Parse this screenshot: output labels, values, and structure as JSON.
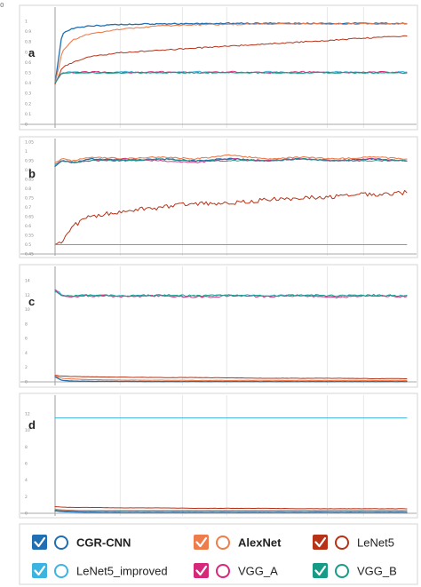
{
  "colors": {
    "CGR-CNN": "#1f6fb2",
    "AlexNet": "#ef7d4b",
    "LeNet5": "#b83217",
    "LeNet5_improved": "#3cb3e0",
    "VGG_A": "#d6287a",
    "VGG_B": "#169c86"
  },
  "top_left_mark": "0",
  "legend": {
    "items": [
      {
        "name": "CGR-CNN",
        "bold": true,
        "color": "#1f6fb2"
      },
      {
        "name": "AlexNet",
        "bold": true,
        "color": "#ef7d4b"
      },
      {
        "name": "LeNet5",
        "bold": false,
        "color": "#b83217"
      },
      {
        "name": "LeNet5_improved",
        "bold": false,
        "color": "#3cb3e0"
      },
      {
        "name": "VGG_A",
        "bold": false,
        "color": "#d6287a"
      },
      {
        "name": "VGG_B",
        "bold": false,
        "color": "#169c86"
      }
    ]
  },
  "chart_data": [
    {
      "type": "line",
      "panel": "a",
      "ylim": [
        0,
        1
      ],
      "yticks": [
        "1",
        "0.9",
        "0.8",
        "0.7",
        "0.6",
        "0.5",
        "0.4",
        "0.3",
        "0.2",
        "0.1",
        "0"
      ],
      "x": [
        0,
        0.02,
        0.05,
        0.1,
        0.2,
        0.3,
        0.4,
        0.5,
        0.6,
        0.7,
        0.8,
        0.9,
        1.0
      ],
      "series": [
        {
          "name": "CGR-CNN",
          "values": [
            0.4,
            0.88,
            0.93,
            0.955,
            0.97,
            0.975,
            0.978,
            0.98,
            0.98,
            0.98,
            0.98,
            0.98,
            0.98
          ]
        },
        {
          "name": "AlexNet",
          "values": [
            0.4,
            0.7,
            0.82,
            0.88,
            0.93,
            0.955,
            0.965,
            0.97,
            0.975,
            0.975,
            0.975,
            0.975,
            0.975
          ]
        },
        {
          "name": "LeNet5",
          "values": [
            0.39,
            0.55,
            0.6,
            0.66,
            0.7,
            0.72,
            0.74,
            0.76,
            0.78,
            0.8,
            0.82,
            0.84,
            0.86
          ]
        },
        {
          "name": "LeNet5_improved",
          "values": [
            0.41,
            0.5,
            0.51,
            0.5,
            0.51,
            0.5,
            0.51,
            0.5,
            0.51,
            0.5,
            0.51,
            0.5,
            0.51
          ]
        },
        {
          "name": "VGG_A",
          "values": [
            0.4,
            0.5,
            0.5,
            0.51,
            0.5,
            0.51,
            0.5,
            0.51,
            0.5,
            0.51,
            0.5,
            0.51,
            0.5
          ]
        },
        {
          "name": "VGG_B",
          "values": [
            0.4,
            0.5,
            0.5,
            0.5,
            0.5,
            0.5,
            0.5,
            0.5,
            0.5,
            0.5,
            0.5,
            0.5,
            0.5
          ]
        }
      ]
    },
    {
      "type": "line",
      "panel": "b",
      "ylim": [
        0.45,
        1.05
      ],
      "yticks": [
        "1.05",
        "1",
        "0.95",
        "0.9",
        "0.85",
        "0.8",
        "0.75",
        "0.7",
        "0.65",
        "0.6",
        "0.55",
        "0.5",
        "0.45"
      ],
      "x": [
        0,
        0.02,
        0.05,
        0.1,
        0.2,
        0.3,
        0.4,
        0.5,
        0.6,
        0.7,
        0.8,
        0.9,
        1.0
      ],
      "series": [
        {
          "name": "CGR-CNN",
          "values": [
            0.92,
            0.95,
            0.94,
            0.96,
            0.95,
            0.96,
            0.95,
            0.96,
            0.95,
            0.96,
            0.95,
            0.96,
            0.95
          ]
        },
        {
          "name": "AlexNet",
          "values": [
            0.94,
            0.96,
            0.95,
            0.97,
            0.96,
            0.97,
            0.96,
            0.98,
            0.96,
            0.97,
            0.96,
            0.97,
            0.96
          ]
        },
        {
          "name": "LeNet5",
          "values": [
            0.5,
            0.52,
            0.6,
            0.65,
            0.68,
            0.7,
            0.72,
            0.72,
            0.74,
            0.75,
            0.76,
            0.77,
            0.78
          ]
        },
        {
          "name": "LeNet5_improved",
          "values": [
            0.5,
            0.5,
            0.5,
            0.5,
            0.5,
            0.5,
            0.5,
            0.5,
            0.5,
            0.5,
            0.5,
            0.5,
            0.5
          ]
        },
        {
          "name": "VGG_A",
          "values": [
            0.93,
            0.95,
            0.94,
            0.95,
            0.96,
            0.95,
            0.94,
            0.96,
            0.95,
            0.96,
            0.95,
            0.96,
            0.95
          ]
        },
        {
          "name": "VGG_B",
          "values": [
            0.93,
            0.95,
            0.94,
            0.95,
            0.95,
            0.96,
            0.95,
            0.95,
            0.95,
            0.96,
            0.95,
            0.95,
            0.95
          ]
        }
      ]
    },
    {
      "type": "line",
      "panel": "c",
      "ylim": [
        0,
        14
      ],
      "yticks": [
        "14",
        "12",
        "10",
        "8",
        "6",
        "4",
        "2",
        "0"
      ],
      "x": [
        0,
        0.02,
        0.05,
        0.1,
        0.2,
        0.3,
        0.4,
        0.5,
        0.6,
        0.7,
        0.8,
        0.9,
        1.0
      ],
      "series": [
        {
          "name": "CGR-CNN",
          "values": [
            0.7,
            0.2,
            0.1,
            0.08,
            0.06,
            0.05,
            0.05,
            0.04,
            0.04,
            0.04,
            0.04,
            0.04,
            0.04
          ]
        },
        {
          "name": "AlexNet",
          "values": [
            0.8,
            0.5,
            0.4,
            0.3,
            0.25,
            0.22,
            0.2,
            0.2,
            0.2,
            0.2,
            0.2,
            0.2,
            0.2
          ]
        },
        {
          "name": "LeNet5",
          "values": [
            0.9,
            0.8,
            0.75,
            0.7,
            0.65,
            0.6,
            0.6,
            0.55,
            0.5,
            0.5,
            0.5,
            0.45,
            0.45
          ]
        },
        {
          "name": "LeNet5_improved",
          "values": [
            12.8,
            12.0,
            11.8,
            12.0,
            11.9,
            12.0,
            11.8,
            12.0,
            11.9,
            12.0,
            11.8,
            12.0,
            11.9
          ]
        },
        {
          "name": "VGG_A",
          "values": [
            12.7,
            11.9,
            11.8,
            11.9,
            11.8,
            11.9,
            11.7,
            11.9,
            11.8,
            11.9,
            11.7,
            11.9,
            11.8
          ]
        },
        {
          "name": "VGG_B",
          "values": [
            12.5,
            12.0,
            11.9,
            12.0,
            11.9,
            12.0,
            11.9,
            12.0,
            11.9,
            12.0,
            11.9,
            12.0,
            11.9
          ]
        }
      ]
    },
    {
      "type": "line",
      "panel": "d",
      "ylim": [
        0,
        12
      ],
      "yticks": [
        "12",
        "10",
        "8",
        "6",
        "4",
        "2",
        "0"
      ],
      "x": [
        0,
        0.02,
        0.05,
        0.1,
        0.2,
        0.3,
        0.4,
        0.5,
        0.6,
        0.7,
        0.8,
        0.9,
        1.0
      ],
      "series": [
        {
          "name": "CGR-CNN",
          "values": [
            0.3,
            0.2,
            0.15,
            0.12,
            0.1,
            0.1,
            0.1,
            0.1,
            0.1,
            0.1,
            0.1,
            0.1,
            0.1
          ]
        },
        {
          "name": "AlexNet",
          "values": [
            0.5,
            0.4,
            0.35,
            0.3,
            0.3,
            0.3,
            0.3,
            0.3,
            0.3,
            0.3,
            0.3,
            0.3,
            0.3
          ]
        },
        {
          "name": "LeNet5",
          "values": [
            0.8,
            0.75,
            0.7,
            0.7,
            0.65,
            0.65,
            0.6,
            0.6,
            0.6,
            0.55,
            0.55,
            0.55,
            0.55
          ]
        },
        {
          "name": "LeNet5_improved",
          "values": [
            11.5,
            11.5,
            11.5,
            11.5,
            11.5,
            11.5,
            11.5,
            11.5,
            11.5,
            11.5,
            11.5,
            11.5,
            11.5
          ]
        },
        {
          "name": "VGG_A",
          "values": [
            0.4,
            0.3,
            0.3,
            0.3,
            0.3,
            0.3,
            0.3,
            0.3,
            0.3,
            0.3,
            0.3,
            0.3,
            0.3
          ]
        },
        {
          "name": "VGG_B",
          "values": [
            0.35,
            0.3,
            0.3,
            0.3,
            0.3,
            0.3,
            0.3,
            0.3,
            0.3,
            0.3,
            0.3,
            0.3,
            0.3
          ]
        }
      ]
    }
  ]
}
